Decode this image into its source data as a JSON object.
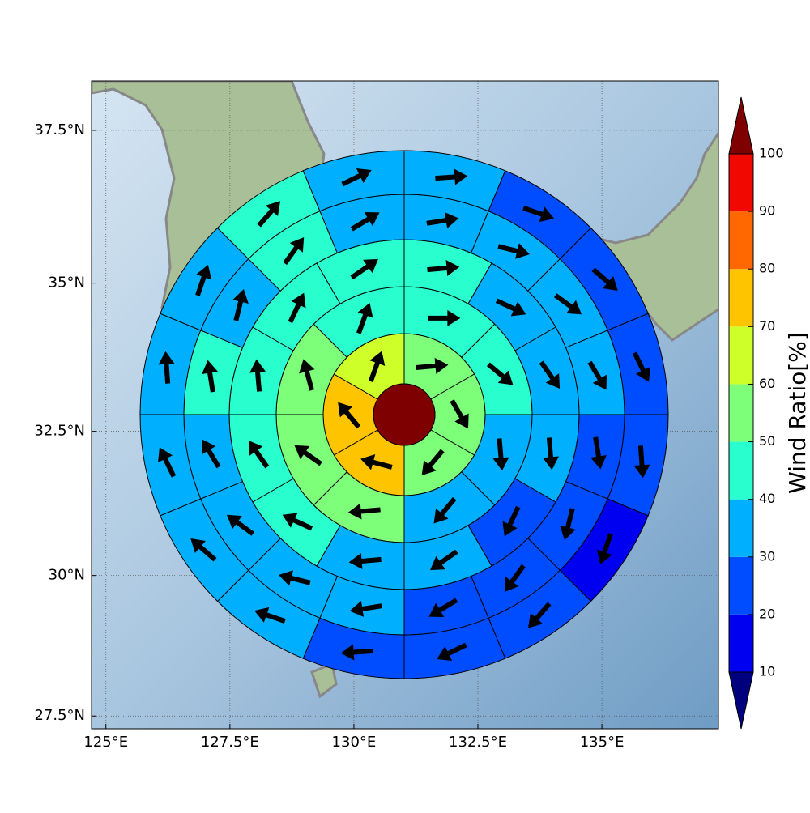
{
  "chart_data": {
    "type": "wind_sector_map",
    "xlim": [
      124.71,
      137.35
    ],
    "ylim": [
      27.27,
      38.29
    ],
    "xticks": [
      {
        "value": 125,
        "label": "125°E"
      },
      {
        "value": 127.5,
        "label": "127.5°E"
      },
      {
        "value": 130,
        "label": "130°E"
      },
      {
        "value": 132.5,
        "label": "132.5°E"
      },
      {
        "value": 135,
        "label": "135°E"
      }
    ],
    "yticks": [
      {
        "value": 27.5,
        "label": "27.5°N"
      },
      {
        "value": 30,
        "label": "30°N"
      },
      {
        "value": 32.5,
        "label": "32.5°N"
      },
      {
        "value": 35,
        "label": "35°N"
      },
      {
        "value": 37.5,
        "label": "37.5°N"
      }
    ],
    "grid": true,
    "center_value": 105,
    "rings": [
      {
        "values": [
          55,
          55,
          55,
          75,
          75,
          65
        ],
        "directions": [
          85,
          150,
          220,
          285,
          320,
          20
        ]
      },
      {
        "values": [
          45,
          45,
          35,
          35,
          55,
          55,
          55,
          45
        ],
        "directions": [
          90,
          130,
          175,
          220,
          265,
          305,
          345,
          20
        ]
      },
      {
        "values": [
          45,
          35,
          35,
          35,
          25,
          35,
          35,
          45,
          45,
          45,
          45,
          45
        ],
        "directions": [
          85,
          115,
          145,
          175,
          205,
          235,
          265,
          295,
          325,
          355,
          25,
          55
        ]
      },
      {
        "values": [
          35,
          35,
          35,
          35,
          25,
          25,
          25,
          25,
          35,
          35,
          35,
          35,
          45,
          35,
          45,
          35
        ],
        "directions": [
          81,
          104,
          126,
          149,
          171,
          194,
          216,
          239,
          261,
          284,
          306,
          329,
          351,
          14,
          36,
          59
        ]
      },
      {
        "values": [
          35,
          25,
          25,
          25,
          25,
          15,
          25,
          25,
          25,
          35,
          35,
          35,
          35,
          35,
          45,
          35
        ],
        "directions": [
          86,
          109,
          131,
          154,
          176,
          199,
          221,
          244,
          266,
          289,
          311,
          334,
          356,
          19,
          41,
          64
        ]
      }
    ],
    "colorbar": {
      "label": "Wind Ratio[%]",
      "ticks": [
        10,
        20,
        30,
        40,
        50,
        60,
        70,
        80,
        90,
        100
      ],
      "colors": [
        "#0000f1",
        "#004cff",
        "#00b0ff",
        "#29ffce",
        "#7dff7a",
        "#ceff29",
        "#ffc400",
        "#ff6800",
        "#f10800"
      ],
      "under_color": "#00007f",
      "over_color": "#7f0000"
    }
  }
}
